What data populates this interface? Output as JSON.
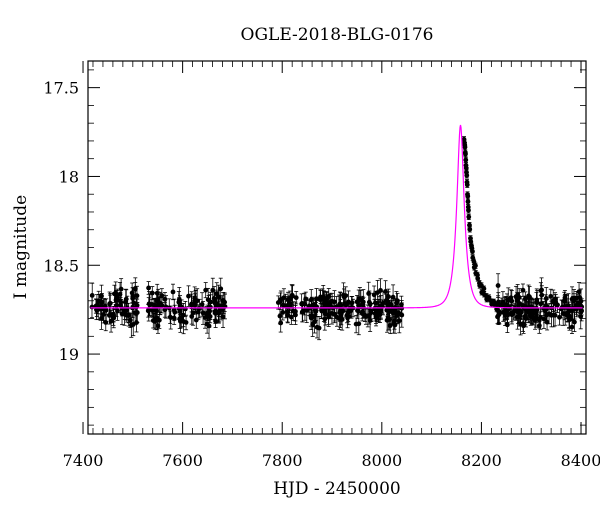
{
  "chart_data": {
    "type": "scatter",
    "title": "OGLE-2018-BLG-0176",
    "xlabel": "HJD - 2450000",
    "ylabel": "I magnitude",
    "xlim": [
      7410,
      8410
    ],
    "ylim": [
      19.45,
      17.35
    ],
    "y_inverted": true,
    "x_ticks": [
      7400,
      7600,
      7800,
      8000,
      8200,
      8400
    ],
    "x_tick_labels": [
      "7400",
      "7600",
      "7800",
      "8000",
      "8200",
      "8400"
    ],
    "y_ticks": [
      17.5,
      18,
      18.5,
      19
    ],
    "y_tick_labels": [
      "17.5",
      "18",
      "18.5",
      "19"
    ],
    "grid": false,
    "series": [
      {
        "kind": "points_with_errorbars",
        "color": "#000000",
        "baseline_mag": 18.74,
        "segments": [
          {
            "x_start": 7418,
            "x_end": 7510,
            "count": 70
          },
          {
            "x_start": 7528,
            "x_end": 7688,
            "count": 110
          },
          {
            "x_start": 7792,
            "x_end": 8042,
            "count": 185
          },
          {
            "x_start": 8232,
            "x_end": 8402,
            "count": 150
          }
        ],
        "event_points": [
          [
            8165,
            17.78
          ],
          [
            8166,
            17.8
          ],
          [
            8167,
            17.84
          ],
          [
            8168,
            17.88
          ],
          [
            8169,
            17.93
          ],
          [
            8170,
            17.98
          ],
          [
            8171,
            18.03
          ],
          [
            8172,
            18.1
          ],
          [
            8173,
            18.15
          ],
          [
            8174,
            18.2
          ],
          [
            8176,
            18.28
          ],
          [
            8178,
            18.34
          ],
          [
            8180,
            18.38
          ],
          [
            8182,
            18.43
          ],
          [
            8185,
            18.48
          ],
          [
            8188,
            18.52
          ],
          [
            8192,
            18.56
          ],
          [
            8196,
            18.6
          ],
          [
            8200,
            18.62
          ],
          [
            8205,
            18.64
          ],
          [
            8210,
            18.66
          ],
          [
            8215,
            18.68
          ],
          [
            8220,
            18.7
          ],
          [
            8225,
            18.71
          ],
          [
            8230,
            18.72
          ]
        ]
      },
      {
        "kind": "model_curve",
        "color": "#ff00ff",
        "baseline_mag": 18.74,
        "peak_time": 8158,
        "peak_mag": 17.71
      }
    ]
  }
}
